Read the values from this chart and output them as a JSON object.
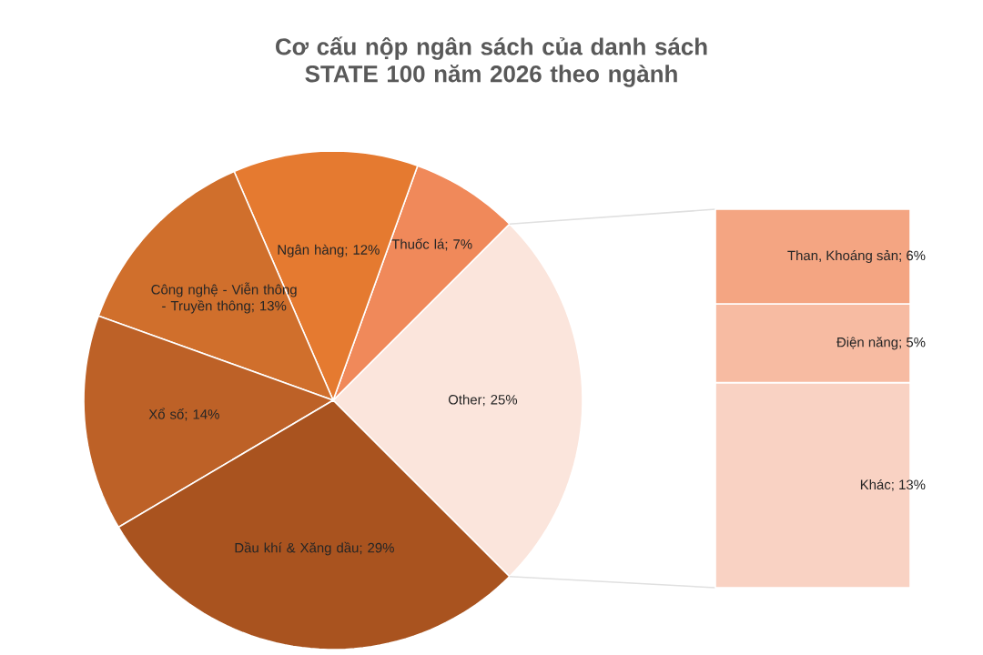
{
  "chart_data": [
    {
      "type": "pie",
      "title": "Cơ cấu nộp ngân sách của danh sách STATE 100 năm 2026 theo ngành",
      "categories": [
        "Other",
        "Thuốc lá",
        "Ngân hàng",
        "Công nghệ - Viễn thông - Truyền thông",
        "Xổ số",
        "Dầu khí & Xăng dầu"
      ],
      "values": [
        25,
        7,
        12,
        13,
        14,
        29
      ],
      "value_labels": [
        "; 25%",
        "; 7%",
        "; 12%",
        "; 13%",
        "; 14%",
        "; 29%"
      ],
      "colors": [
        "#fbe5dc",
        "#f0895a",
        "#e57a30",
        "#d06f2c",
        "#bd6127",
        "#a9531f"
      ]
    },
    {
      "type": "bar",
      "stacked": true,
      "categories": [
        null
      ],
      "series": [
        {
          "name": "Khác",
          "color": "#f9d2c3",
          "values": [
            13
          ],
          "value_labels": [
            "; 13%"
          ]
        },
        {
          "name": "Điện năng",
          "color": "#f7bba2",
          "values": [
            5
          ],
          "value_labels": [
            "; 5%"
          ]
        },
        {
          "name": "Than, Khoáng sản",
          "color": "#f4a582",
          "values": [
            6
          ],
          "value_labels": [
            "; 6%"
          ]
        }
      ]
    }
  ]
}
